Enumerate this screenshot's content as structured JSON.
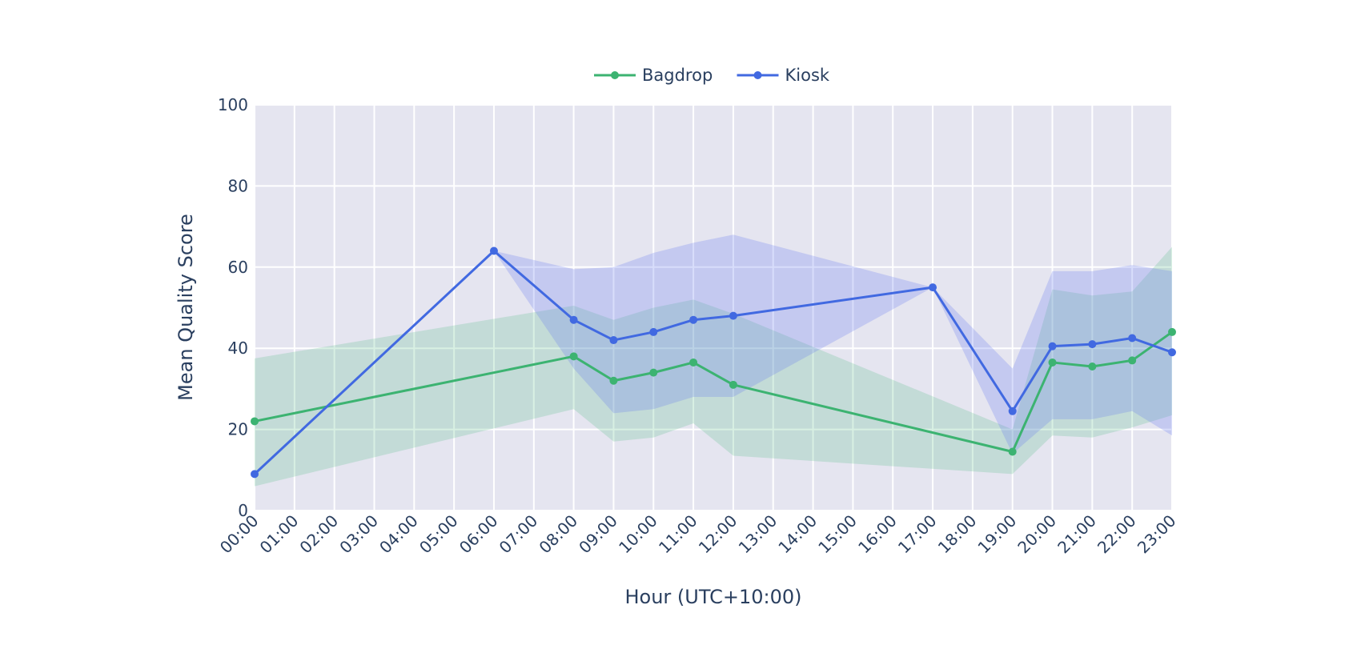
{
  "chart_data": {
    "type": "line",
    "xlabel": "Hour (UTC+10:00)",
    "ylabel": "Mean Quality Score",
    "x_ticks": [
      "00:00",
      "01:00",
      "02:00",
      "03:00",
      "04:00",
      "05:00",
      "06:00",
      "07:00",
      "08:00",
      "09:00",
      "10:00",
      "11:00",
      "12:00",
      "13:00",
      "14:00",
      "15:00",
      "16:00",
      "17:00",
      "18:00",
      "19:00",
      "20:00",
      "21:00",
      "22:00",
      "23:00"
    ],
    "ylim": [
      0,
      100
    ],
    "y_ticks": [
      0,
      20,
      40,
      60,
      80,
      100
    ],
    "grid": true,
    "legend_position": "top-center",
    "plot_background": "#e5e5f0",
    "series": [
      {
        "name": "Bagdrop",
        "color": "#3cb371",
        "band_color": "rgba(60,179,113,0.2)",
        "x": [
          0,
          8,
          9,
          10,
          11,
          12,
          19,
          20,
          21,
          22,
          23
        ],
        "values": [
          22,
          38,
          32,
          34,
          36.5,
          31,
          14.5,
          36.5,
          35.5,
          37,
          44
        ],
        "lower": [
          6,
          25,
          17,
          18,
          21.5,
          13.5,
          9,
          18.5,
          18,
          20.5,
          23.5
        ],
        "upper": [
          37.5,
          50.5,
          47,
          50,
          52,
          48.5,
          20,
          54.5,
          53,
          54,
          65
        ]
      },
      {
        "name": "Kiosk",
        "color": "#4169e1",
        "band_color": "rgba(100,120,240,0.25)",
        "x": [
          0,
          6,
          8,
          9,
          10,
          11,
          12,
          17,
          19,
          20,
          21,
          22,
          23
        ],
        "values": [
          9,
          64,
          47,
          42,
          44,
          47,
          48,
          55,
          24.5,
          40.5,
          41,
          42.5,
          39
        ],
        "lower": [
          9,
          64,
          35,
          24,
          25,
          28,
          28,
          55,
          14,
          22.5,
          22.5,
          24.5,
          18.5
        ],
        "upper": [
          9,
          64,
          59.5,
          60,
          63.5,
          66,
          68,
          55,
          35,
          59,
          59,
          60.5,
          59
        ]
      }
    ]
  }
}
